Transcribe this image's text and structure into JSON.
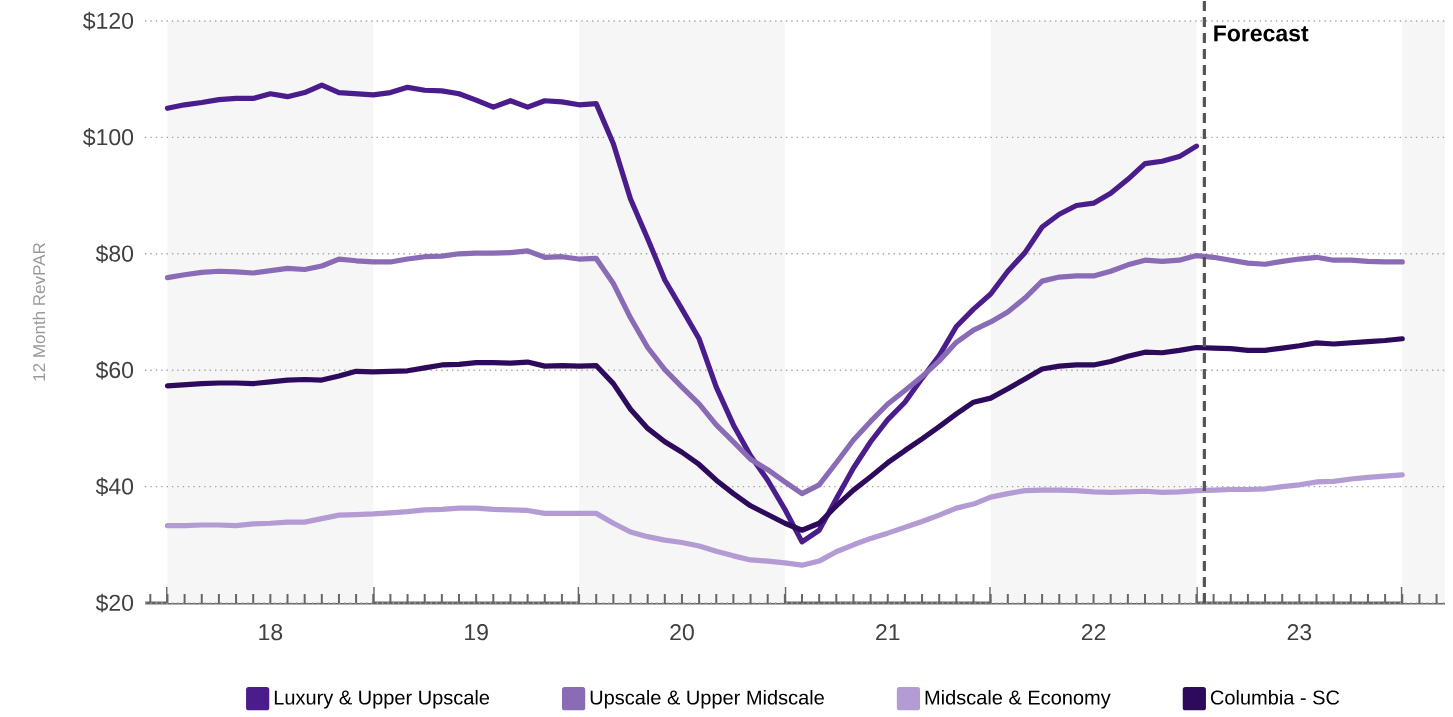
{
  "chart_data": {
    "type": "line",
    "ylabel": "12 Month RevPAR",
    "x": [
      "2018-01",
      "2018-02",
      "2018-03",
      "2018-04",
      "2018-05",
      "2018-06",
      "2018-07",
      "2018-08",
      "2018-09",
      "2018-10",
      "2018-11",
      "2018-12",
      "2019-01",
      "2019-02",
      "2019-03",
      "2019-04",
      "2019-05",
      "2019-06",
      "2019-07",
      "2019-08",
      "2019-09",
      "2019-10",
      "2019-11",
      "2019-12",
      "2020-01",
      "2020-02",
      "2020-03",
      "2020-04",
      "2020-05",
      "2020-06",
      "2020-07",
      "2020-08",
      "2020-09",
      "2020-10",
      "2020-11",
      "2020-12",
      "2021-01",
      "2021-02",
      "2021-03",
      "2021-04",
      "2021-05",
      "2021-06",
      "2021-07",
      "2021-08",
      "2021-09",
      "2021-10",
      "2021-11",
      "2021-12",
      "2022-01",
      "2022-02",
      "2022-03",
      "2022-04",
      "2022-05",
      "2022-06",
      "2022-07",
      "2022-08",
      "2022-09",
      "2022-10",
      "2022-11",
      "2022-12",
      "2023-01",
      "2023-02",
      "2023-03",
      "2023-04",
      "2023-05",
      "2023-06",
      "2023-07",
      "2023-08",
      "2023-09",
      "2023-10",
      "2023-11",
      "2023-12",
      "2024-01"
    ],
    "series": [
      {
        "name": "Luxury & Upper Upscale",
        "color": "#4b1c8c",
        "values": [
          105.0,
          105.6,
          106.0,
          106.5,
          106.7,
          106.7,
          107.5,
          107.0,
          107.7,
          109.0,
          107.7,
          107.5,
          107.3,
          107.7,
          108.6,
          108.1,
          108.0,
          107.5,
          106.4,
          105.2,
          106.3,
          105.2,
          106.3,
          106.1,
          105.6,
          105.8,
          98.9,
          89.4,
          82.6,
          75.5,
          70.5,
          65.4,
          57.1,
          50.6,
          45.3,
          41.1,
          36.1,
          30.5,
          32.5,
          37.9,
          43.2,
          47.7,
          51.5,
          54.5,
          58.6,
          62.5,
          67.5,
          70.5,
          73.1,
          77.0,
          80.2,
          84.6,
          86.8,
          88.3,
          88.7,
          90.4,
          92.8,
          95.5,
          95.9,
          96.7,
          98.5,
          null,
          null,
          null,
          null,
          null,
          null,
          null,
          null,
          null,
          null,
          null,
          null
        ]
      },
      {
        "name": "Upscale & Upper Midscale",
        "color": "#8a6bb5",
        "values": [
          75.9,
          76.4,
          76.8,
          77.0,
          76.9,
          76.7,
          77.1,
          77.5,
          77.3,
          77.9,
          79.1,
          78.8,
          78.6,
          78.6,
          79.1,
          79.5,
          79.6,
          80.0,
          80.1,
          80.1,
          80.2,
          80.5,
          79.4,
          79.5,
          79.1,
          79.2,
          74.9,
          69.0,
          63.9,
          60.1,
          57.1,
          54.2,
          50.6,
          47.7,
          44.7,
          42.9,
          40.8,
          38.8,
          40.3,
          44.1,
          48.0,
          51.2,
          54.2,
          56.5,
          58.9,
          61.6,
          64.8,
          66.9,
          68.3,
          70.0,
          72.4,
          75.3,
          76.0,
          76.2,
          76.2,
          77.0,
          78.1,
          78.9,
          78.7,
          78.9,
          79.7,
          79.4,
          78.9,
          78.4,
          78.2,
          78.7,
          79.1,
          79.4,
          78.9,
          78.9,
          78.7,
          78.6,
          78.6
        ]
      },
      {
        "name": "Midscale & Economy",
        "color": "#b39bd3",
        "values": [
          33.3,
          33.3,
          33.4,
          33.4,
          33.3,
          33.6,
          33.7,
          33.9,
          33.9,
          34.5,
          35.1,
          35.2,
          35.3,
          35.5,
          35.7,
          36.0,
          36.1,
          36.3,
          36.3,
          36.1,
          36.0,
          35.9,
          35.4,
          35.4,
          35.4,
          35.4,
          33.7,
          32.2,
          31.4,
          30.8,
          30.4,
          29.8,
          28.9,
          28.1,
          27.4,
          27.2,
          26.9,
          26.5,
          27.2,
          28.8,
          30.0,
          31.1,
          32.0,
          33.0,
          34.0,
          35.1,
          36.3,
          37.0,
          38.2,
          38.8,
          39.3,
          39.4,
          39.4,
          39.3,
          39.1,
          39.0,
          39.1,
          39.2,
          39.0,
          39.1,
          39.3,
          39.4,
          39.5,
          39.5,
          39.6,
          40.0,
          40.3,
          40.8,
          40.9,
          41.3,
          41.6,
          41.8,
          42.0
        ]
      },
      {
        "name": "Columbia - SC",
        "color": "#2e0a5c",
        "values": [
          57.3,
          57.5,
          57.7,
          57.8,
          57.8,
          57.7,
          58.0,
          58.3,
          58.4,
          58.3,
          59.0,
          59.8,
          59.7,
          59.8,
          59.9,
          60.4,
          60.9,
          61.0,
          61.3,
          61.3,
          61.2,
          61.4,
          60.7,
          60.8,
          60.7,
          60.8,
          57.7,
          53.3,
          50.0,
          47.7,
          45.9,
          43.8,
          41.1,
          38.8,
          36.7,
          35.2,
          33.7,
          32.5,
          33.7,
          36.7,
          39.4,
          41.7,
          44.1,
          46.2,
          48.2,
          50.3,
          52.5,
          54.5,
          55.2,
          56.8,
          58.5,
          60.2,
          60.7,
          60.9,
          60.9,
          61.5,
          62.4,
          63.1,
          63.0,
          63.4,
          63.9,
          63.8,
          63.7,
          63.4,
          63.4,
          63.8,
          64.2,
          64.7,
          64.5,
          64.7,
          64.9,
          65.1,
          65.4
        ]
      }
    ],
    "xlim": [
      "2017-11-22",
      "2024-03-16"
    ],
    "xticks": [
      {
        "value": "2018-01-01",
        "label": null
      },
      {
        "value": "2018-07-01",
        "label": "18"
      },
      {
        "value": "2019-01-01",
        "label": null
      },
      {
        "value": "2019-07-01",
        "label": "19"
      },
      {
        "value": "2020-01-01",
        "label": null
      },
      {
        "value": "2020-07-01",
        "label": "20"
      },
      {
        "value": "2021-01-01",
        "label": null
      },
      {
        "value": "2021-07-01",
        "label": "21"
      },
      {
        "value": "2022-01-01",
        "label": null
      },
      {
        "value": "2022-07-01",
        "label": "22"
      },
      {
        "value": "2023-01-01",
        "label": null
      },
      {
        "value": "2023-07-01",
        "label": "23"
      },
      {
        "value": "2024-01-01",
        "label": null
      }
    ],
    "ylim": [
      20,
      120
    ],
    "yticks": [
      {
        "value": 20,
        "label": "$20"
      },
      {
        "value": 40,
        "label": "$40"
      },
      {
        "value": 60,
        "label": "$60"
      },
      {
        "value": 80,
        "label": "$80"
      },
      {
        "value": 100,
        "label": "$100"
      },
      {
        "value": 120,
        "label": "$120"
      }
    ],
    "grid": "y",
    "legend": "bottom",
    "line_style": "solid",
    "bands": [
      {
        "axis": "x",
        "from": "2018-01-01",
        "to": "2019-01-01",
        "color": "#f6f6f6"
      },
      {
        "axis": "x",
        "from": "2020-01-01",
        "to": "2021-01-01",
        "color": "#f6f6f6"
      },
      {
        "axis": "x",
        "from": "2022-01-01",
        "to": "2023-01-01",
        "color": "#f6f6f6"
      },
      {
        "axis": "x",
        "from": "2024-01-01",
        "to": "2024-03-16",
        "color": "#f6f6f6"
      }
    ],
    "ref_lines": [
      {
        "axis": "x",
        "value": "2023-01-15",
        "label": "Forecast",
        "color": "#555555",
        "line_style": "dashed"
      }
    ]
  }
}
